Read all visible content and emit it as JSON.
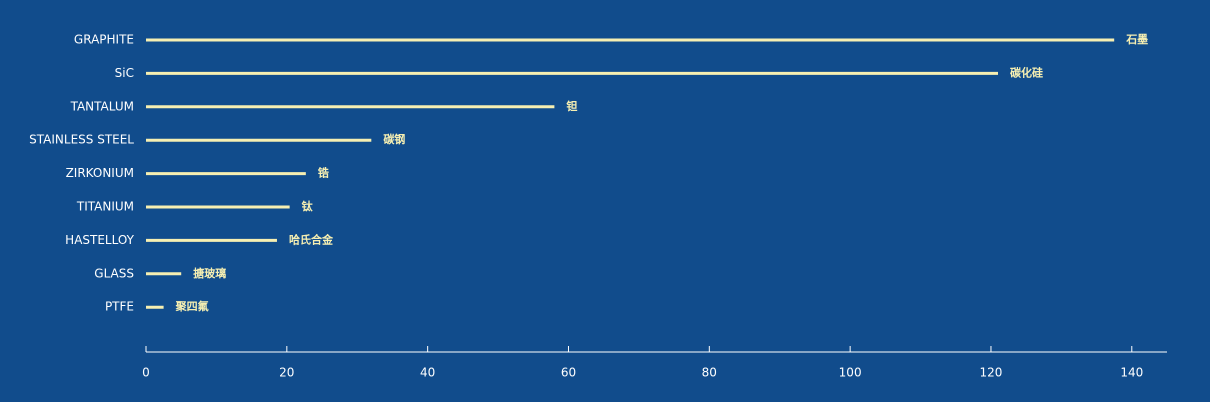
{
  "chart_data": {
    "type": "hbar",
    "categories": [
      "GRAPHITE",
      "SiC",
      "TANTALUM",
      "STAINLESS STEEL",
      "ZIRKONIUM",
      "TITANIUM",
      "HASTELLOY",
      "GLASS",
      "PTFE"
    ],
    "values": [
      137.5,
      121,
      58,
      32,
      22.7,
      20.4,
      18.6,
      5,
      2.5
    ],
    "annotations": [
      "石墨",
      "碳化硅",
      "钽",
      "碳钢",
      "锆",
      "钛",
      "哈氏合金",
      "搪玻璃",
      "聚四氟"
    ],
    "color": "#f6efb2",
    "xlim": [
      0,
      145
    ],
    "xticks": [
      0,
      20,
      40,
      60,
      80,
      100,
      120,
      140
    ],
    "grid": false
  }
}
